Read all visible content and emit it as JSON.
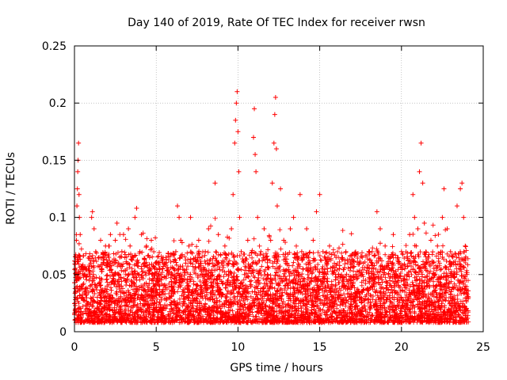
{
  "chart_data": {
    "type": "scatter",
    "title": "Day 140 of 2019, Rate Of TEC Index for receiver rwsn",
    "xlabel": "GPS time / hours",
    "ylabel": "ROTI / TECUs",
    "xlim": [
      0,
      25
    ],
    "ylim": [
      0,
      0.25
    ],
    "xticks": [
      0,
      5,
      10,
      15,
      20,
      25
    ],
    "yticks": [
      0,
      0.05,
      0.1,
      0.15,
      0.2,
      0.25
    ],
    "xtick_labels": [
      "0",
      "5",
      "10",
      "15",
      "20",
      "25"
    ],
    "ytick_labels": [
      "0",
      "0.05",
      "0.1",
      "0.15",
      "0.2",
      "0.25"
    ],
    "grid": true,
    "marker": "+",
    "color": "#ff0000",
    "series": [
      {
        "name": "ROTI",
        "points": [
          [
            0.05,
            0.02
          ],
          [
            0.08,
            0.035
          ],
          [
            0.1,
            0.05
          ],
          [
            0.12,
            0.08
          ],
          [
            0.15,
            0.11
          ],
          [
            0.18,
            0.125
          ],
          [
            0.2,
            0.14
          ],
          [
            0.22,
            0.15
          ],
          [
            0.25,
            0.165
          ],
          [
            0.28,
            0.12
          ],
          [
            0.3,
            0.1
          ],
          [
            0.35,
            0.085
          ],
          [
            0.4,
            0.04
          ],
          [
            0.5,
            0.03
          ],
          [
            0.6,
            0.05
          ],
          [
            0.7,
            0.055
          ],
          [
            0.8,
            0.025
          ],
          [
            0.9,
            0.045
          ],
          [
            1.0,
            0.06
          ],
          [
            1.05,
            0.1
          ],
          [
            1.1,
            0.105
          ],
          [
            1.2,
            0.09
          ],
          [
            1.3,
            0.07
          ],
          [
            1.4,
            0.03
          ],
          [
            1.5,
            0.065
          ],
          [
            1.6,
            0.08
          ],
          [
            1.7,
            0.035
          ],
          [
            1.8,
            0.06
          ],
          [
            1.9,
            0.075
          ],
          [
            2.0,
            0.04
          ],
          [
            2.1,
            0.065
          ],
          [
            2.2,
            0.085
          ],
          [
            2.3,
            0.03
          ],
          [
            2.4,
            0.05
          ],
          [
            2.5,
            0.08
          ],
          [
            2.6,
            0.095
          ],
          [
            2.7,
            0.06
          ],
          [
            2.8,
            0.04
          ],
          [
            2.9,
            0.07
          ],
          [
            3.0,
            0.085
          ],
          [
            3.1,
            0.045
          ],
          [
            3.2,
            0.06
          ],
          [
            3.3,
            0.09
          ],
          [
            3.4,
            0.075
          ],
          [
            3.5,
            0.03
          ],
          [
            3.6,
            0.065
          ],
          [
            3.7,
            0.1
          ],
          [
            3.8,
            0.108
          ],
          [
            3.9,
            0.05
          ],
          [
            4.0,
            0.07
          ],
          [
            4.1,
            0.085
          ],
          [
            4.2,
            0.04
          ],
          [
            4.3,
            0.06
          ],
          [
            4.4,
            0.075
          ],
          [
            4.5,
            0.035
          ],
          [
            4.6,
            0.065
          ],
          [
            4.7,
            0.08
          ],
          [
            4.8,
            0.045
          ],
          [
            4.9,
            0.05
          ],
          [
            5.0,
            0.06
          ],
          [
            5.2,
            0.04
          ],
          [
            5.4,
            0.055
          ],
          [
            5.6,
            0.065
          ],
          [
            5.8,
            0.03
          ],
          [
            6.0,
            0.05
          ],
          [
            6.2,
            0.07
          ],
          [
            6.3,
            0.11
          ],
          [
            6.4,
            0.1
          ],
          [
            6.5,
            0.08
          ],
          [
            6.6,
            0.045
          ],
          [
            6.8,
            0.06
          ],
          [
            7.0,
            0.075
          ],
          [
            7.1,
            0.1
          ],
          [
            7.2,
            0.035
          ],
          [
            7.4,
            0.065
          ],
          [
            7.6,
            0.08
          ],
          [
            7.8,
            0.05
          ],
          [
            8.0,
            0.07
          ],
          [
            8.2,
            0.09
          ],
          [
            8.4,
            0.04
          ],
          [
            8.6,
            0.13
          ],
          [
            8.8,
            0.085
          ],
          [
            9.0,
            0.06
          ],
          [
            9.2,
            0.075
          ],
          [
            9.4,
            0.045
          ],
          [
            9.6,
            0.09
          ],
          [
            9.7,
            0.12
          ],
          [
            9.8,
            0.165
          ],
          [
            9.85,
            0.185
          ],
          [
            9.9,
            0.2
          ],
          [
            9.95,
            0.21
          ],
          [
            10.0,
            0.175
          ],
          [
            10.05,
            0.14
          ],
          [
            10.1,
            0.1
          ],
          [
            10.2,
            0.07
          ],
          [
            10.4,
            0.05
          ],
          [
            10.6,
            0.08
          ],
          [
            10.8,
            0.04
          ],
          [
            10.95,
            0.17
          ],
          [
            11.0,
            0.195
          ],
          [
            11.05,
            0.155
          ],
          [
            11.1,
            0.14
          ],
          [
            11.2,
            0.1
          ],
          [
            11.4,
            0.07
          ],
          [
            11.6,
            0.09
          ],
          [
            11.8,
            0.05
          ],
          [
            12.0,
            0.08
          ],
          [
            12.1,
            0.13
          ],
          [
            12.2,
            0.165
          ],
          [
            12.25,
            0.19
          ],
          [
            12.3,
            0.205
          ],
          [
            12.35,
            0.16
          ],
          [
            12.4,
            0.11
          ],
          [
            12.6,
            0.125
          ],
          [
            12.8,
            0.08
          ],
          [
            13.0,
            0.06
          ],
          [
            13.2,
            0.09
          ],
          [
            13.4,
            0.1
          ],
          [
            13.6,
            0.05
          ],
          [
            13.8,
            0.12
          ],
          [
            13.9,
            0.07
          ],
          [
            14.0,
            0.04
          ],
          [
            14.2,
            0.09
          ],
          [
            14.4,
            0.06
          ],
          [
            14.6,
            0.08
          ],
          [
            14.8,
            0.105
          ],
          [
            15.0,
            0.12
          ],
          [
            15.2,
            0.07
          ],
          [
            15.4,
            0.05
          ],
          [
            15.6,
            0.075
          ],
          [
            15.8,
            0.04
          ],
          [
            16.0,
            0.065
          ],
          [
            16.2,
            0.055
          ],
          [
            16.4,
            0.045
          ],
          [
            16.6,
            0.07
          ],
          [
            16.8,
            0.03
          ],
          [
            17.0,
            0.06
          ],
          [
            17.2,
            0.05
          ],
          [
            17.4,
            0.035
          ],
          [
            17.6,
            0.065
          ],
          [
            17.8,
            0.045
          ],
          [
            18.0,
            0.07
          ],
          [
            18.2,
            0.06
          ],
          [
            18.5,
            0.105
          ],
          [
            18.7,
            0.09
          ],
          [
            19.0,
            0.075
          ],
          [
            19.2,
            0.05
          ],
          [
            19.5,
            0.085
          ],
          [
            19.8,
            0.06
          ],
          [
            20.0,
            0.07
          ],
          [
            20.2,
            0.055
          ],
          [
            20.5,
            0.085
          ],
          [
            20.7,
            0.12
          ],
          [
            20.8,
            0.1
          ],
          [
            20.9,
            0.075
          ],
          [
            21.0,
            0.09
          ],
          [
            21.1,
            0.14
          ],
          [
            21.2,
            0.165
          ],
          [
            21.3,
            0.13
          ],
          [
            21.4,
            0.095
          ],
          [
            21.5,
            0.06
          ],
          [
            21.8,
            0.08
          ],
          [
            22.0,
            0.05
          ],
          [
            22.2,
            0.075
          ],
          [
            22.5,
            0.1
          ],
          [
            22.6,
            0.125
          ],
          [
            22.8,
            0.09
          ],
          [
            23.0,
            0.07
          ],
          [
            23.2,
            0.05
          ],
          [
            23.4,
            0.11
          ],
          [
            23.6,
            0.125
          ],
          [
            23.7,
            0.13
          ],
          [
            23.8,
            0.1
          ],
          [
            23.9,
            0.075
          ],
          [
            24.0,
            0.05
          ]
        ]
      }
    ]
  }
}
